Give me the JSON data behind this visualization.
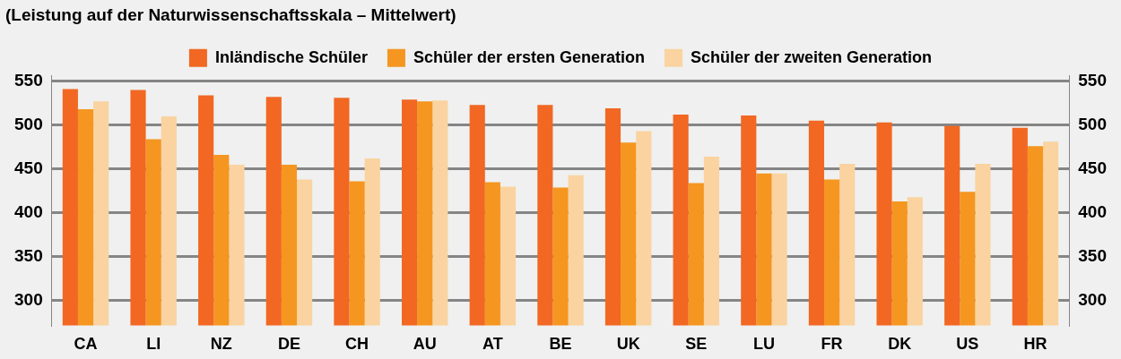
{
  "chart_data": {
    "type": "bar",
    "title": "(Leistung auf der Naturwissenschaftsskala – Mittelwert)",
    "categories": [
      "CA",
      "LI",
      "NZ",
      "DE",
      "CH",
      "AU",
      "AT",
      "BE",
      "UK",
      "SE",
      "LU",
      "FR",
      "DK",
      "US",
      "HR"
    ],
    "series": [
      {
        "name": "Inländische Schüler",
        "color": "#f26722",
        "values": [
          541,
          540,
          534,
          532,
          531,
          529,
          523,
          523,
          519,
          512,
          511,
          505,
          503,
          499,
          497
        ]
      },
      {
        "name": "Schüler der ersten Generation",
        "color": "#f59620",
        "values": [
          518,
          484,
          466,
          455,
          436,
          527,
          435,
          429,
          480,
          434,
          445,
          438,
          413,
          424,
          476
        ]
      },
      {
        "name": "Schüler der zweiten Generation",
        "color": "#fad3a0",
        "values": [
          527,
          510,
          455,
          438,
          462,
          528,
          430,
          443,
          493,
          464,
          445,
          456,
          418,
          456,
          481
        ]
      }
    ],
    "ylim": [
      272,
      556
    ],
    "yticks": [
      300,
      350,
      400,
      450,
      500,
      550
    ],
    "y2lim": [
      272,
      556
    ],
    "y2ticks": [
      300,
      350,
      400,
      450,
      500,
      550
    ],
    "grid": "y",
    "legend": "top"
  }
}
